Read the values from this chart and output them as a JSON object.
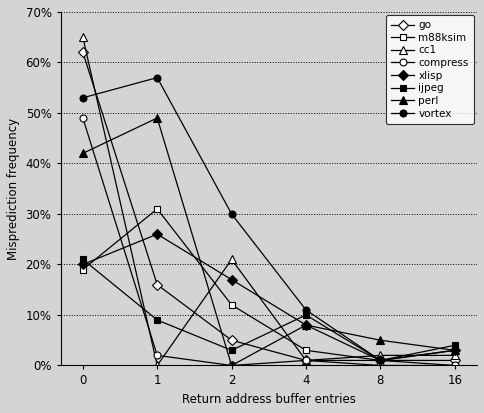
{
  "x_positions": [
    0,
    1,
    2,
    3,
    4,
    5
  ],
  "x_labels": [
    "0",
    "1",
    "2",
    "4",
    "8",
    "16"
  ],
  "series": {
    "go": [
      0.62,
      0.16,
      0.05,
      0.01,
      0.01,
      0.01
    ],
    "m88ksim": [
      0.19,
      0.31,
      0.12,
      0.03,
      0.01,
      0.0
    ],
    "cc1": [
      0.65,
      0.0,
      0.21,
      0.01,
      0.02,
      0.02
    ],
    "compress": [
      0.49,
      0.02,
      0.0,
      0.01,
      0.0,
      0.0
    ],
    "xlisp": [
      0.2,
      0.26,
      0.17,
      0.08,
      0.01,
      0.03
    ],
    "ijpeg": [
      0.21,
      0.09,
      0.03,
      0.1,
      0.01,
      0.04
    ],
    "perl": [
      0.42,
      0.49,
      0.0,
      0.08,
      0.05,
      0.03
    ],
    "vortex": [
      0.53,
      0.57,
      0.3,
      0.11,
      0.01,
      0.03
    ]
  },
  "marker_styles": {
    "go": {
      "marker": "D",
      "mfc": "white",
      "mec": "black",
      "ms": 5
    },
    "m88ksim": {
      "marker": "s",
      "mfc": "white",
      "mec": "black",
      "ms": 5
    },
    "cc1": {
      "marker": "^",
      "mfc": "white",
      "mec": "black",
      "ms": 6
    },
    "compress": {
      "marker": "o",
      "mfc": "white",
      "mec": "black",
      "ms": 5
    },
    "xlisp": {
      "marker": "D",
      "mfc": "black",
      "mec": "black",
      "ms": 5
    },
    "ijpeg": {
      "marker": "s",
      "mfc": "black",
      "mec": "black",
      "ms": 5
    },
    "perl": {
      "marker": "^",
      "mfc": "black",
      "mec": "black",
      "ms": 6
    },
    "vortex": {
      "marker": "o",
      "mfc": "black",
      "mec": "black",
      "ms": 5
    }
  },
  "xlabel": "Return address buffer entries",
  "ylabel": "Misprediction frequency",
  "ylim": [
    0.0,
    0.7
  ],
  "yticks": [
    0.0,
    0.1,
    0.2,
    0.3,
    0.4,
    0.5,
    0.6,
    0.7
  ],
  "ytick_labels": [
    "0%",
    "10%",
    "20%",
    "30%",
    "40%",
    "50%",
    "60%",
    "70%"
  ],
  "bg_color": "#d4d4d4",
  "legend_order": [
    "go",
    "m88ksim",
    "cc1",
    "compress",
    "xlisp",
    "ijpeg",
    "perl",
    "vortex"
  ]
}
